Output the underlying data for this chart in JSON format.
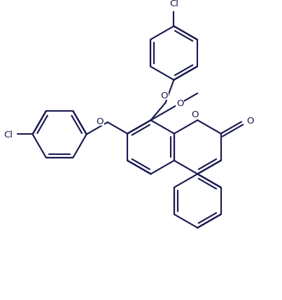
{
  "bond_color": "#1a1a52",
  "bond_width": 1.55,
  "background": "#ffffff",
  "figsize": [
    4.03,
    4.31
  ],
  "dpi": 100,
  "xlim": [
    0,
    10.0
  ],
  "ylim": [
    0,
    10.7
  ],
  "label_fontsize": 9.5
}
